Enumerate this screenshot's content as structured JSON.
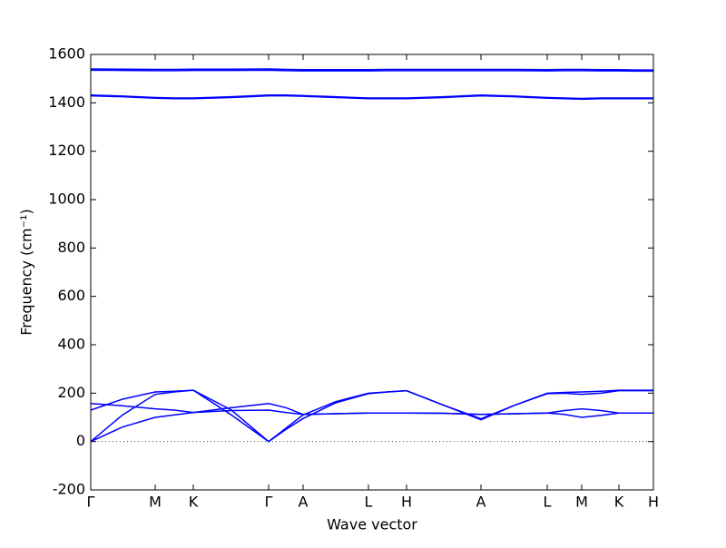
{
  "chart_data": {
    "type": "line",
    "x_label": "Wave vector",
    "y_label": "Frequency (cm⁻¹)",
    "x": [
      0,
      0.35,
      0.71,
      0.92,
      1.13,
      1.55,
      1.96,
      2.15,
      2.34,
      2.7,
      3.06,
      3.27,
      3.48,
      3.89,
      4.3,
      4.67,
      5.03,
      5.22,
      5.41,
      5.62,
      5.82,
      6.01,
      6.2
    ],
    "xlim": [
      0,
      6.2
    ],
    "xticks": [
      {
        "value": 0,
        "label": "Γ"
      },
      {
        "value": 0.71,
        "label": "M"
      },
      {
        "value": 1.13,
        "label": "K"
      },
      {
        "value": 1.96,
        "label": "Γ"
      },
      {
        "value": 2.34,
        "label": "A"
      },
      {
        "value": 3.06,
        "label": "L"
      },
      {
        "value": 3.48,
        "label": "H"
      },
      {
        "value": 4.3,
        "label": "A"
      },
      {
        "value": 5.03,
        "label": "L"
      },
      {
        "value": 5.41,
        "label": "M"
      },
      {
        "value": 5.82,
        "label": "K"
      },
      {
        "value": 6.2,
        "label": "H"
      }
    ],
    "ylim": [
      -200,
      1600
    ],
    "yticks": [
      -200,
      0,
      200,
      400,
      600,
      800,
      1000,
      1200,
      1400,
      1600
    ],
    "hline": 0,
    "series": [
      {
        "color": "#0000ff",
        "values": [
          130,
          175,
          205,
          208,
          212,
          130,
          0,
          55,
          110,
          165,
          200,
          205,
          210,
          150,
          94,
          150,
          200,
          203,
          205,
          208,
          212,
          212,
          212
        ]
      },
      {
        "color": "#0000ff",
        "values": [
          0,
          110,
          195,
          205,
          212,
          110,
          0,
          50,
          95,
          160,
          198,
          205,
          210,
          150,
          90,
          150,
          198,
          200,
          195,
          200,
          210,
          210,
          210
        ]
      },
      {
        "color": "#0000ff",
        "values": [
          157,
          148,
          135,
          130,
          120,
          140,
          157,
          140,
          112,
          115,
          118,
          118,
          118,
          117,
          112,
          115,
          118,
          128,
          135,
          128,
          118,
          118,
          118
        ]
      },
      {
        "color": "#0000ff",
        "values": [
          0,
          60,
          100,
          110,
          120,
          128,
          130,
          120,
          112,
          115,
          118,
          118,
          118,
          117,
          112,
          115,
          118,
          112,
          100,
          108,
          118,
          118,
          118
        ]
      },
      {
        "color": "#0000ff",
        "values": [
          1540,
          1539,
          1538,
          1538,
          1539,
          1539,
          1540,
          1538,
          1537,
          1537,
          1537,
          1538,
          1538,
          1538,
          1538,
          1538,
          1537,
          1538,
          1538,
          1537,
          1537,
          1536,
          1536
        ]
      },
      {
        "color": "#0000ff",
        "values": [
          1535,
          1534,
          1533,
          1533,
          1534,
          1534,
          1535,
          1533,
          1532,
          1532,
          1532,
          1533,
          1533,
          1533,
          1533,
          1533,
          1532,
          1533,
          1533,
          1532,
          1532,
          1531,
          1531
        ]
      },
      {
        "color": "#0000ff",
        "values": [
          1432,
          1428,
          1422,
          1420,
          1420,
          1425,
          1432,
          1432,
          1430,
          1425,
          1420,
          1420,
          1420,
          1425,
          1432,
          1428,
          1422,
          1420,
          1418,
          1420,
          1420,
          1420,
          1420
        ]
      },
      {
        "color": "#0000ff",
        "values": [
          1429,
          1425,
          1419,
          1417,
          1417,
          1422,
          1429,
          1429,
          1427,
          1422,
          1417,
          1417,
          1417,
          1422,
          1429,
          1425,
          1419,
          1417,
          1415,
          1417,
          1417,
          1417,
          1417
        ]
      }
    ]
  }
}
